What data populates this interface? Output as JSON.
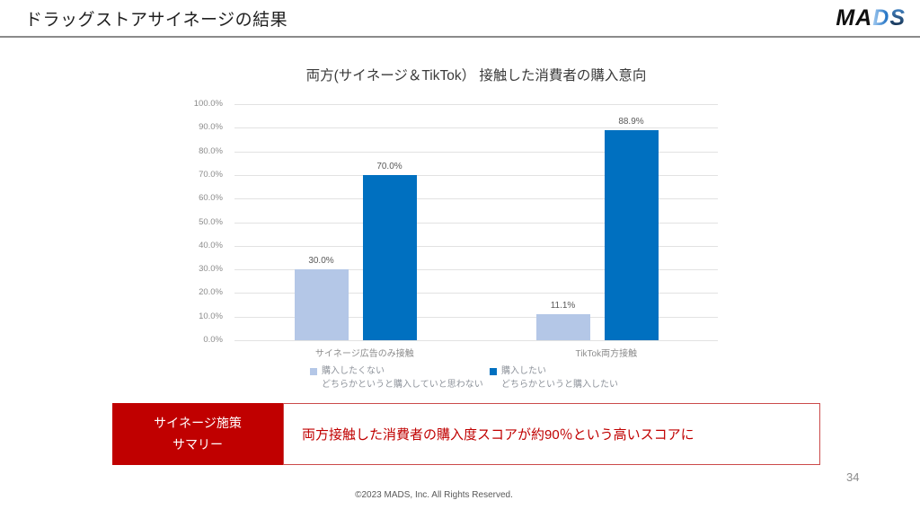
{
  "header": {
    "title": "ドラッグストアサイネージの結果",
    "logo": {
      "ma": "MA",
      "d": "D",
      "s": "S"
    }
  },
  "chart_data": {
    "type": "bar",
    "title": "両方(サイネージ＆TikTok） 接触した消費者の購入意向",
    "categories": [
      "サイネージ広告のみ接触",
      "TikTok両方接触"
    ],
    "series": [
      {
        "name": "購入したくない どちらかというと購入していと思わない",
        "color": "#b4c7e7",
        "values": [
          30.0,
          11.1
        ],
        "labels": [
          "30.0%",
          "11.1%"
        ]
      },
      {
        "name": "購入したい どちらかというと購入したい",
        "color": "#0070c0",
        "values": [
          70.0,
          88.9
        ],
        "labels": [
          "70.0%",
          "88.9%"
        ]
      }
    ],
    "xlabel": "",
    "ylabel": "",
    "ylim": [
      0,
      100
    ],
    "ytick_labels": [
      "0.0%",
      "10.0%",
      "20.0%",
      "30.0%",
      "40.0%",
      "50.0%",
      "60.0%",
      "70.0%",
      "80.0%",
      "90.0%",
      "100.0%"
    ],
    "grid": true,
    "legend_position": "bottom"
  },
  "legend": [
    {
      "line1": "購入したくない",
      "line2": "どちらかというと購入していと思わない",
      "color": "#b4c7e7"
    },
    {
      "line1": "購入したい",
      "line2": "どちらかというと購入したい",
      "color": "#0070c0"
    }
  ],
  "summary": {
    "label_line1": "サイネージ施策",
    "label_line2": "サマリー",
    "text": "両方接触した消費者の購入度スコアが約90％という高いスコアに",
    "accent_color": "#c00000"
  },
  "footer": {
    "copyright": "©2023 MADS, Inc. All Rights Reserved.",
    "page_number": "34"
  }
}
